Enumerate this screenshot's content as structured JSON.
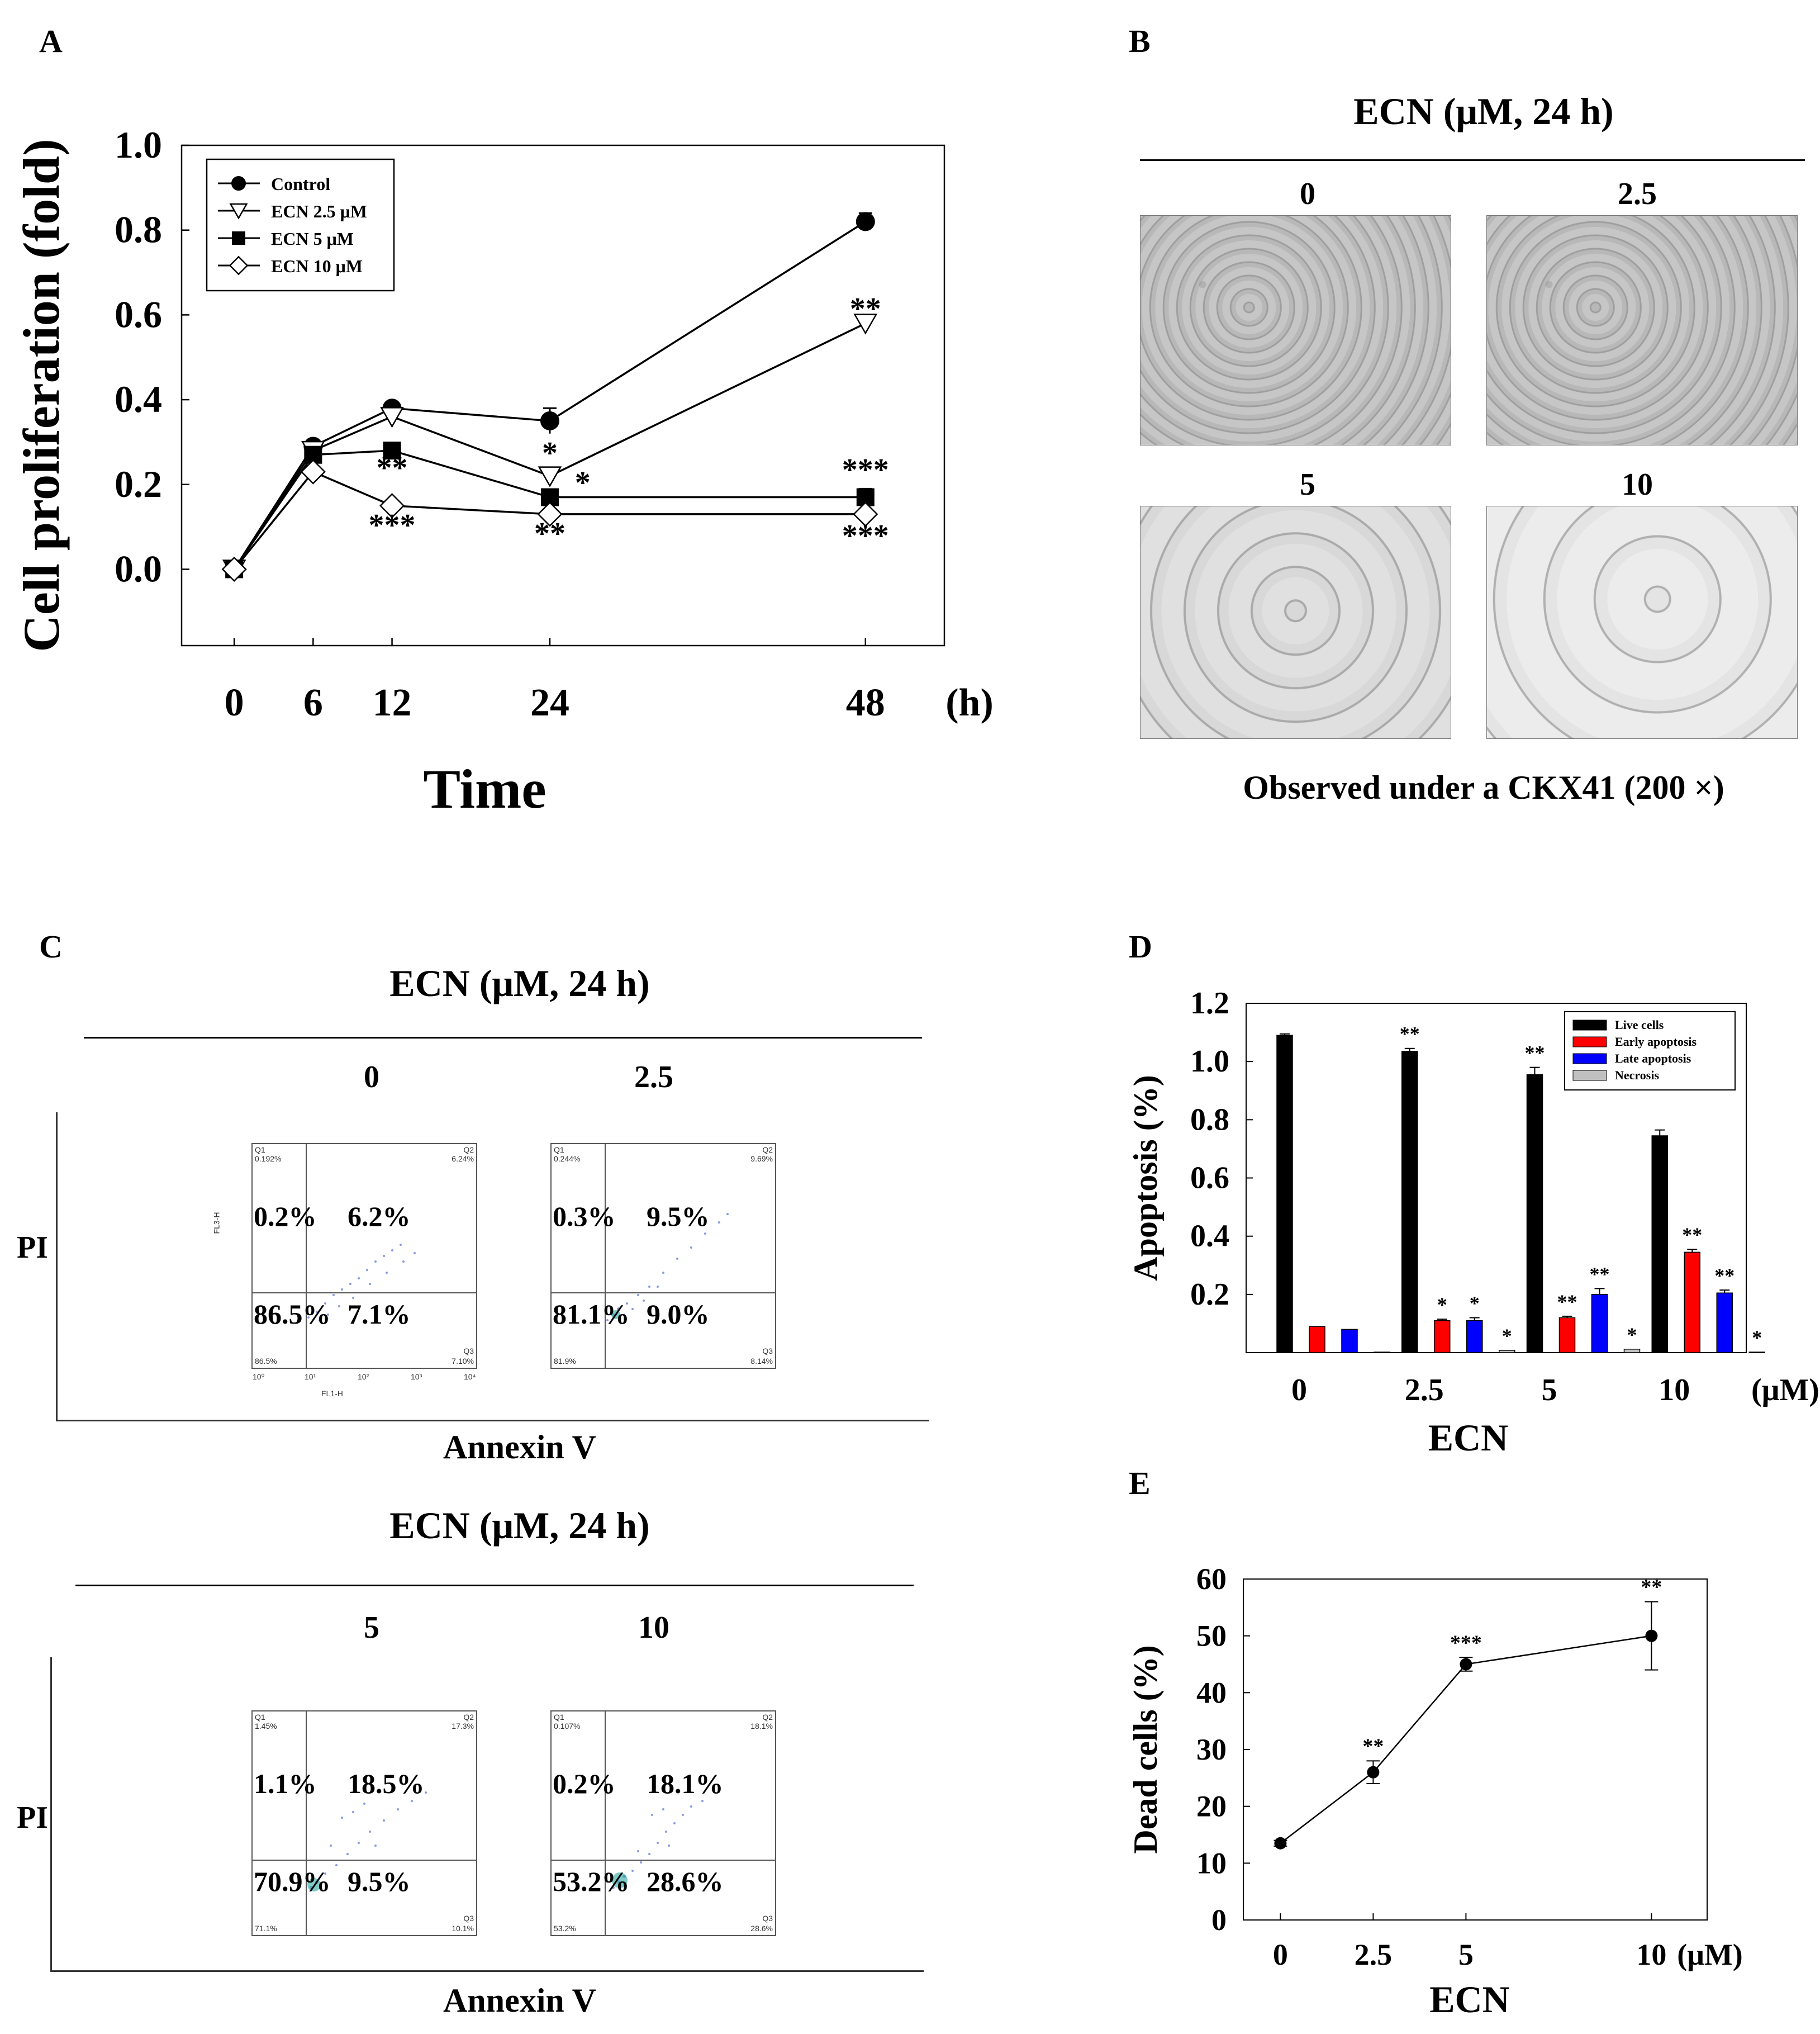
{
  "panels": {
    "a": "A",
    "b": "B",
    "c": "C",
    "d": "D",
    "e": "E"
  },
  "chart_data": [
    {
      "panel": "A",
      "type": "line",
      "title": "",
      "xlabel": "Time",
      "x_unit": "(h)",
      "ylabel": "Cell proliferation (fold)",
      "x": [
        0,
        6,
        12,
        24,
        48
      ],
      "xticks": [
        "0",
        "6",
        "12",
        "24",
        "48"
      ],
      "yticks": [
        "0.0",
        "0.2",
        "0.4",
        "0.6",
        "0.8",
        "1.0"
      ],
      "xlim": [
        -4,
        54
      ],
      "ylim": [
        -0.18,
        1.0
      ],
      "legend_position": "top-left",
      "series": [
        {
          "name": "Control",
          "marker": "filled-circle",
          "values": [
            0.0,
            0.29,
            0.38,
            0.35,
            0.82
          ],
          "err": [
            0,
            0.01,
            0.01,
            0.03,
            0.02
          ]
        },
        {
          "name": "ECN 2.5 μM",
          "marker": "open-triangle-down",
          "values": [
            0.0,
            0.28,
            0.36,
            0.22,
            0.58
          ],
          "err": [
            0,
            0.01,
            0.01,
            0.01,
            0.01
          ]
        },
        {
          "name": "ECN 5 μM",
          "marker": "filled-square",
          "values": [
            0.0,
            0.27,
            0.28,
            0.17,
            0.17
          ],
          "err": [
            0,
            0.01,
            0.01,
            0.01,
            0.02
          ]
        },
        {
          "name": "ECN 10 μM",
          "marker": "open-diamond",
          "values": [
            0.0,
            0.23,
            0.15,
            0.13,
            0.13
          ],
          "err": [
            0,
            0.01,
            0.01,
            0.01,
            0.01
          ]
        }
      ],
      "annotations": [
        {
          "text": "**",
          "x": 12,
          "y": 0.215
        },
        {
          "text": "***",
          "x": 12,
          "y": 0.08
        },
        {
          "text": "*",
          "x": 24,
          "y": 0.25
        },
        {
          "text": "*",
          "x": 26.5,
          "y": 0.18
        },
        {
          "text": "**",
          "x": 24,
          "y": 0.06
        },
        {
          "text": "**",
          "x": 48,
          "y": 0.59
        },
        {
          "text": "***",
          "x": 48,
          "y": 0.21
        },
        {
          "text": "***",
          "x": 48,
          "y": 0.055
        }
      ]
    },
    {
      "panel": "D",
      "type": "bar",
      "title": "",
      "xlabel": "ECN",
      "x_unit": "(μM)",
      "ylabel": "Apoptosis (%)",
      "categories": [
        "0",
        "2.5",
        "5",
        "10"
      ],
      "yticks": [
        "0.2",
        "0.4",
        "0.6",
        "0.8",
        "1.0",
        "1.2"
      ],
      "ylim": [
        0,
        1.2
      ],
      "legend_position": "top-right",
      "series": [
        {
          "name": "Live cells",
          "color": "#000000",
          "values": [
            1.09,
            1.035,
            0.955,
            0.745
          ],
          "err": [
            0.005,
            0.01,
            0.025,
            0.02
          ]
        },
        {
          "name": "Early apoptosis",
          "color": "#ff0000",
          "values": [
            0.09,
            0.11,
            0.12,
            0.345
          ],
          "err": [
            0,
            0.005,
            0.005,
            0.01
          ]
        },
        {
          "name": "Late apoptosis",
          "color": "#0000ff",
          "values": [
            0.08,
            0.11,
            0.2,
            0.205
          ],
          "err": [
            0,
            0.01,
            0.02,
            0.01
          ]
        },
        {
          "name": "Necrosis",
          "color": "#c0c0c0",
          "values": [
            0.002,
            0.008,
            0.012,
            0.002
          ],
          "err": [
            0,
            0,
            0,
            0
          ]
        }
      ],
      "sig_labels": [
        [
          "",
          "",
          "",
          ""
        ],
        [
          "**",
          "*",
          "*",
          "*"
        ],
        [
          "**",
          "**",
          "**",
          "*"
        ],
        [
          "",
          "**",
          "**",
          "*"
        ]
      ]
    },
    {
      "panel": "E",
      "type": "line",
      "title": "",
      "xlabel": "ECN",
      "x_unit": "(μM)",
      "ylabel": "Dead cells (%)",
      "x": [
        0,
        2.5,
        5,
        10
      ],
      "xticks": [
        "0",
        "2.5",
        "5",
        "10"
      ],
      "yticks": [
        "0",
        "10",
        "20",
        "30",
        "40",
        "50",
        "60"
      ],
      "xlim": [
        -1,
        11.5
      ],
      "ylim": [
        0,
        60
      ],
      "values": [
        13.5,
        26,
        45,
        50
      ],
      "err": [
        0.5,
        2,
        1.2,
        6
      ],
      "sig_labels": [
        "",
        "**",
        "***",
        "**"
      ]
    }
  ],
  "panel_b": {
    "title": "ECN (μM, 24 h)",
    "labels": [
      "0",
      "2.5",
      "5",
      "10"
    ],
    "caption": "Observed under a CKX41 (200 ×)"
  },
  "panel_c": {
    "blocks": [
      {
        "title": "ECN (μM, 24 h)",
        "ylabel": "PI",
        "xlabel": "Annexin V",
        "plots": [
          {
            "label": "0",
            "ul": "0.2%",
            "ur": "6.2%",
            "ll": "86.5%",
            "lr": "7.1%",
            "q1": "Q1",
            "q1v": "0.192%",
            "q2": "Q2",
            "q2v": "6.24%",
            "q3": "Q3",
            "q3v": "7.10%",
            "q4v": "86.5%"
          },
          {
            "label": "2.5",
            "ul": "0.3%",
            "ur": "9.5%",
            "ll": "81.1%",
            "lr": "9.0%",
            "q1": "Q1",
            "q1v": "0.244%",
            "q2": "Q2",
            "q2v": "9.69%",
            "q3": "Q3",
            "q3v": "8.14%",
            "q4v": "81.9%"
          }
        ]
      },
      {
        "title": "ECN (μM, 24 h)",
        "ylabel": "PI",
        "xlabel": "Annexin V",
        "plots": [
          {
            "label": "5",
            "ul": "1.1%",
            "ur": "18.5%",
            "ll": "70.9%",
            "lr": "9.5%",
            "q1": "Q1",
            "q1v": "1.45%",
            "q2": "Q2",
            "q2v": "17.3%",
            "q3": "Q3",
            "q3v": "10.1%",
            "q4v": "71.1%"
          },
          {
            "label": "10",
            "ul": "0.2%",
            "ur": "18.1%",
            "ll": "53.2%",
            "lr": "28.6%",
            "q1": "Q1",
            "q1v": "0.107%",
            "q2": "Q2",
            "q2v": "18.1%",
            "q3": "Q3",
            "q3v": "28.6%",
            "q4v": "53.2%"
          }
        ]
      }
    ],
    "axis_x_name": "FL1-H",
    "axis_y_name": "FL3-H",
    "decades": [
      "10⁰",
      "10¹",
      "10²",
      "10³",
      "10⁴"
    ]
  }
}
